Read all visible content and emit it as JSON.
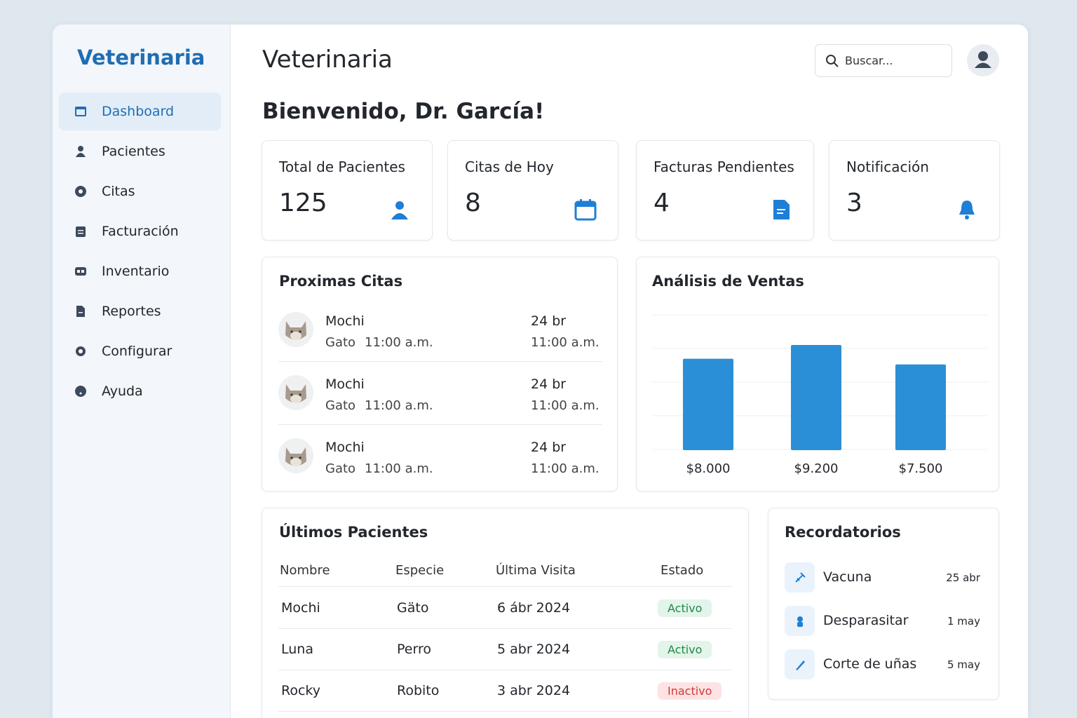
{
  "sidebar": {
    "brand": "Veterinaria",
    "menu": [
      {
        "label": "Dashboard",
        "active": true
      },
      {
        "label": "Pacientes",
        "active": false
      },
      {
        "label": "Citas",
        "active": false
      },
      {
        "label": "Facturación",
        "active": false
      },
      {
        "label": "Inventario",
        "active": false
      },
      {
        "label": "Reportes",
        "active": false
      },
      {
        "label": "Configurar",
        "active": false
      },
      {
        "label": "Ayuda",
        "active": false
      }
    ]
  },
  "header": {
    "title": "Veterinaria",
    "search_placeholder": "Buscar..."
  },
  "welcome": "Bienvenido, Dr. García!",
  "stats": [
    {
      "label": "Total de Pacientes",
      "value": 125
    },
    {
      "label": "Citas de Hoy",
      "value": 8
    },
    {
      "label": "Facturas Pendientes",
      "value": 4
    },
    {
      "label": "Notificación",
      "value": 3
    }
  ],
  "appointments": {
    "title": "Proximas Citas",
    "items": [
      {
        "name": "Mochi",
        "species": "Gato",
        "time": "11:00 a.m.",
        "date": "24 br",
        "date_time": "11:00 a.m."
      },
      {
        "name": "Mochi",
        "species": "Gato",
        "time": "11:00 a.m.",
        "date": "24 br",
        "date_time": "11:00 a.m."
      },
      {
        "name": "Mochi",
        "species": "Gato",
        "time": "11:00 a.m.",
        "date": "24 br",
        "date_time": "11:00 a.m."
      }
    ]
  },
  "sales_chart": {
    "type": "bar",
    "title": "Análisis de Ventas",
    "values": [
      8000,
      9200,
      7500
    ],
    "value_labels": [
      "$8.000",
      "$9.200",
      "$7.500"
    ],
    "color": "#2b8fd8"
  },
  "patients": {
    "title": "Últimos Pacientes",
    "columns": [
      "Nombre",
      "Especie",
      "Última Visita",
      "Estado"
    ],
    "rows": [
      {
        "cells": [
          "Mochi",
          "Gäto",
          "6 ábr 2024",
          "Activo"
        ],
        "tone": "success"
      },
      {
        "cells": [
          "Luna",
          "Perro",
          "5 abr 2024",
          "Activo"
        ],
        "tone": "success"
      },
      {
        "cells": [
          "Rocky",
          "Robito",
          "3 abr 2024",
          "Inactivo"
        ],
        "tone": "danger"
      }
    ]
  },
  "reminders": {
    "title": "Recordatorios",
    "items": [
      {
        "label": "Vacuna",
        "date": "25 abr"
      },
      {
        "label": "Desparasitar",
        "date": "1 may"
      },
      {
        "label": "Corte de uñas",
        "date": "5 may"
      }
    ]
  }
}
